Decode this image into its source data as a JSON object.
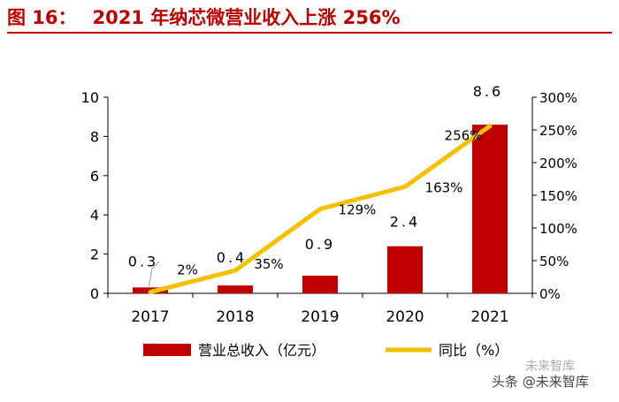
{
  "header": {
    "figure_label": "图 16：",
    "title_text": "2021 年纳芯微营业收入上涨 256%"
  },
  "colors": {
    "bar": "#c00000",
    "line": "#f5c000",
    "title": "#c00000",
    "axis": "#000000"
  },
  "chart_data": {
    "type": "bar+line",
    "categories": [
      "2017",
      "2018",
      "2019",
      "2020",
      "2021"
    ],
    "series": [
      {
        "name": "营业总收入（亿元）",
        "type": "bar",
        "axis": "left",
        "values": [
          0.3,
          0.4,
          0.9,
          2.4,
          8.6
        ],
        "labels": [
          "0.3",
          "0.4",
          "0.9",
          "2.4",
          "8.6"
        ]
      },
      {
        "name": "同比（%）",
        "type": "line",
        "axis": "right",
        "values": [
          2,
          35,
          129,
          163,
          256
        ],
        "labels": [
          "2%",
          "35%",
          "129%",
          "163%",
          "256%"
        ]
      }
    ],
    "y_left": {
      "min": 0,
      "max": 10,
      "ticks": [
        0,
        2,
        4,
        6,
        8,
        10
      ],
      "tick_labels": [
        "0",
        "2",
        "4",
        "6",
        "8",
        "10"
      ]
    },
    "y_right": {
      "min": 0,
      "max": 300,
      "ticks": [
        0,
        50,
        100,
        150,
        200,
        250,
        300
      ],
      "tick_labels": [
        "0%",
        "50%",
        "100%",
        "150%",
        "200%",
        "250%",
        "300%"
      ]
    },
    "legend": {
      "position": "bottom",
      "items": [
        "营业总收入（亿元）",
        "同比（%）"
      ]
    },
    "grid": false
  },
  "watermark": {
    "text": "头条 @未来智库",
    "logo_text": "未来智库"
  }
}
